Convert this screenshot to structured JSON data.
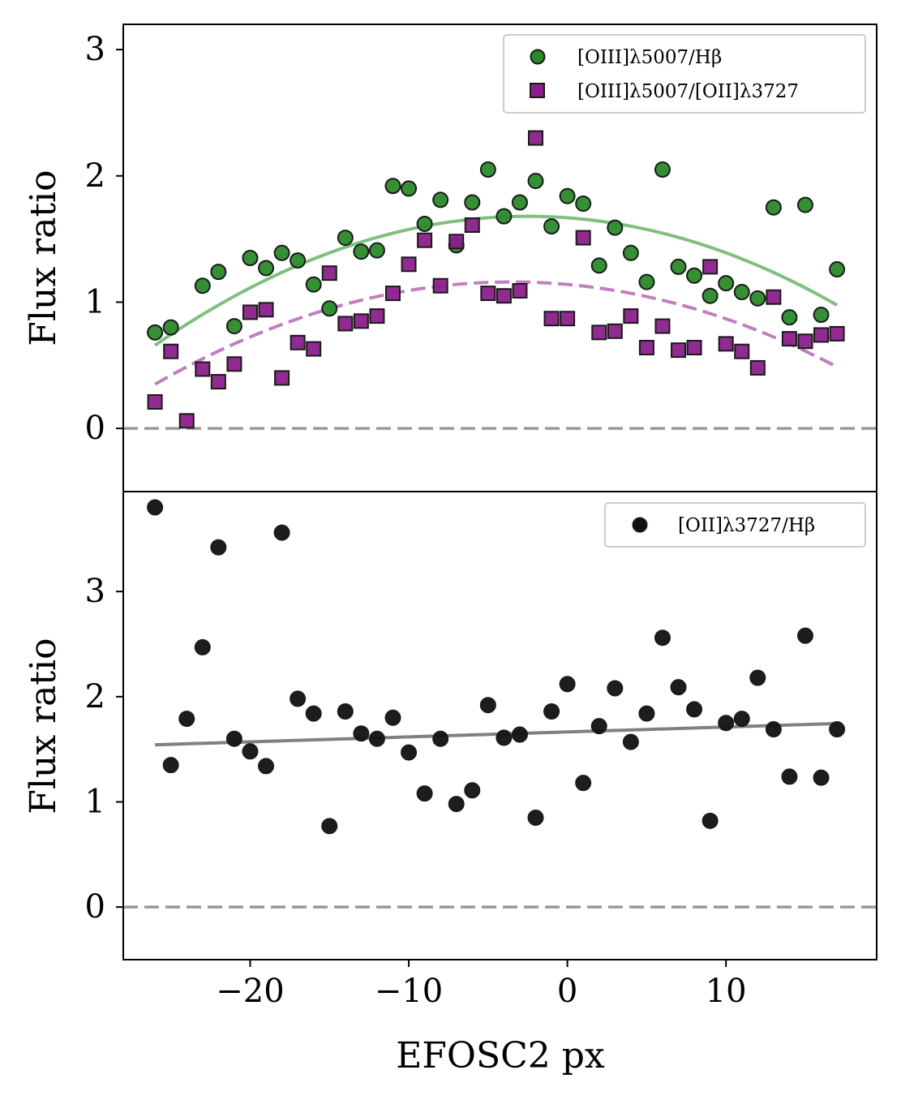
{
  "chart_data": [
    {
      "type": "scatter",
      "panel": "top",
      "ylabel": "Flux ratio",
      "xlabel": "",
      "xlim": [
        -28,
        19.5
      ],
      "ylim": [
        -0.5,
        3.2
      ],
      "yticks": [
        0,
        1,
        2,
        3
      ],
      "legend_position": "top-right",
      "zero_line": true,
      "series": [
        {
          "name": "[OIII]λ5007/Hβ",
          "marker": "circle",
          "color": "#2a8a2a",
          "x": [
            -26,
            -25,
            -23,
            -22,
            -21,
            -20,
            -19,
            -18,
            -17,
            -16,
            -15,
            -14,
            -13,
            -12,
            -11,
            -10,
            -9,
            -8,
            -7,
            -6,
            -5,
            -4,
            -3,
            -2,
            -1,
            0,
            1,
            2,
            3,
            4,
            5,
            6,
            7,
            8,
            9,
            10,
            11,
            12,
            13,
            14,
            15,
            16,
            17
          ],
          "y": [
            0.76,
            0.8,
            1.13,
            1.24,
            0.81,
            1.35,
            1.27,
            1.39,
            1.33,
            1.14,
            0.95,
            1.51,
            1.4,
            1.41,
            1.92,
            1.9,
            1.62,
            1.81,
            1.45,
            1.79,
            2.05,
            1.68,
            1.79,
            1.96,
            1.6,
            1.84,
            1.78,
            1.29,
            1.59,
            1.39,
            1.16,
            2.05,
            1.28,
            1.21,
            1.05,
            1.15,
            1.08,
            1.03,
            1.75,
            0.88,
            1.77,
            0.9,
            1.26
          ],
          "fit": {
            "kind": "quadratic",
            "peak_x": -2.5,
            "peak_y": 1.68,
            "curvature": -0.00185,
            "x_range": [
              -26,
              17
            ],
            "color": "#7fbf7f",
            "style": "solid"
          }
        },
        {
          "name": "[OIII]λ5007/[OII]λ3727",
          "marker": "square",
          "color": "#8b1f8b",
          "x": [
            -26,
            -25,
            -24,
            -23,
            -22,
            -21,
            -20,
            -19,
            -18,
            -17,
            -16,
            -15,
            -14,
            -13,
            -12,
            -11,
            -10,
            -9,
            -8,
            -7,
            -6,
            -5,
            -4,
            -3,
            -2,
            -1,
            0,
            1,
            2,
            3,
            4,
            5,
            6,
            7,
            8,
            9,
            10,
            11,
            12,
            13,
            14,
            15,
            16,
            17
          ],
          "y": [
            0.21,
            0.61,
            0.06,
            0.47,
            0.37,
            0.51,
            0.92,
            0.94,
            0.4,
            0.68,
            0.63,
            1.23,
            0.83,
            0.85,
            0.89,
            1.07,
            1.3,
            1.49,
            1.13,
            1.48,
            1.61,
            1.07,
            1.05,
            1.09,
            2.3,
            0.87,
            0.87,
            1.51,
            0.76,
            0.77,
            0.89,
            0.64,
            0.81,
            0.62,
            0.64,
            1.28,
            0.67,
            0.61,
            0.48,
            1.04,
            0.71,
            0.69,
            0.74,
            0.75
          ],
          "fit": {
            "kind": "quadratic",
            "peak_x": -3.5,
            "peak_y": 1.16,
            "curvature": -0.0016,
            "x_range": [
              -26,
              17
            ],
            "color": "#bf7fbf",
            "style": "dashed"
          }
        }
      ]
    },
    {
      "type": "scatter",
      "panel": "bottom",
      "ylabel": "Flux ratio",
      "xlabel": "EFOSC2 px",
      "xlim": [
        -28,
        19.5
      ],
      "ylim": [
        -0.5,
        3.95
      ],
      "yticks": [
        0,
        1,
        2,
        3
      ],
      "xticks": [
        -20,
        -10,
        0,
        10
      ],
      "xtick_labels": [
        "−20",
        "−10",
        "0",
        "10"
      ],
      "legend_position": "top-right",
      "zero_line": true,
      "series": [
        {
          "name": "[OII]λ3727/Hβ",
          "marker": "circle",
          "color": "#111111",
          "x": [
            -26,
            -25,
            -24,
            -23,
            -22,
            -21,
            -20,
            -19,
            -18,
            -17,
            -16,
            -15,
            -14,
            -13,
            -12,
            -11,
            -10,
            -9,
            -8,
            -7,
            -6,
            -5,
            -4,
            -3,
            -2,
            -1,
            0,
            1,
            2,
            3,
            4,
            5,
            6,
            7,
            8,
            9,
            10,
            11,
            12,
            13,
            14,
            15,
            16,
            17
          ],
          "y": [
            3.8,
            1.35,
            1.79,
            2.47,
            3.42,
            1.6,
            1.48,
            1.34,
            3.56,
            1.98,
            1.84,
            0.77,
            1.86,
            1.65,
            1.6,
            1.8,
            1.47,
            1.08,
            1.6,
            0.98,
            1.11,
            1.92,
            1.61,
            1.64,
            0.85,
            1.86,
            2.12,
            1.18,
            1.72,
            2.08,
            1.57,
            1.84,
            2.56,
            2.09,
            1.88,
            0.82,
            1.75,
            1.79,
            2.18,
            1.69,
            1.24,
            2.58,
            1.23,
            1.69
          ],
          "fit": {
            "kind": "linear",
            "slope": 0.0047,
            "intercept": 1.665,
            "x_range": [
              -26,
              17
            ],
            "color": "#808080",
            "style": "solid"
          }
        }
      ]
    }
  ]
}
